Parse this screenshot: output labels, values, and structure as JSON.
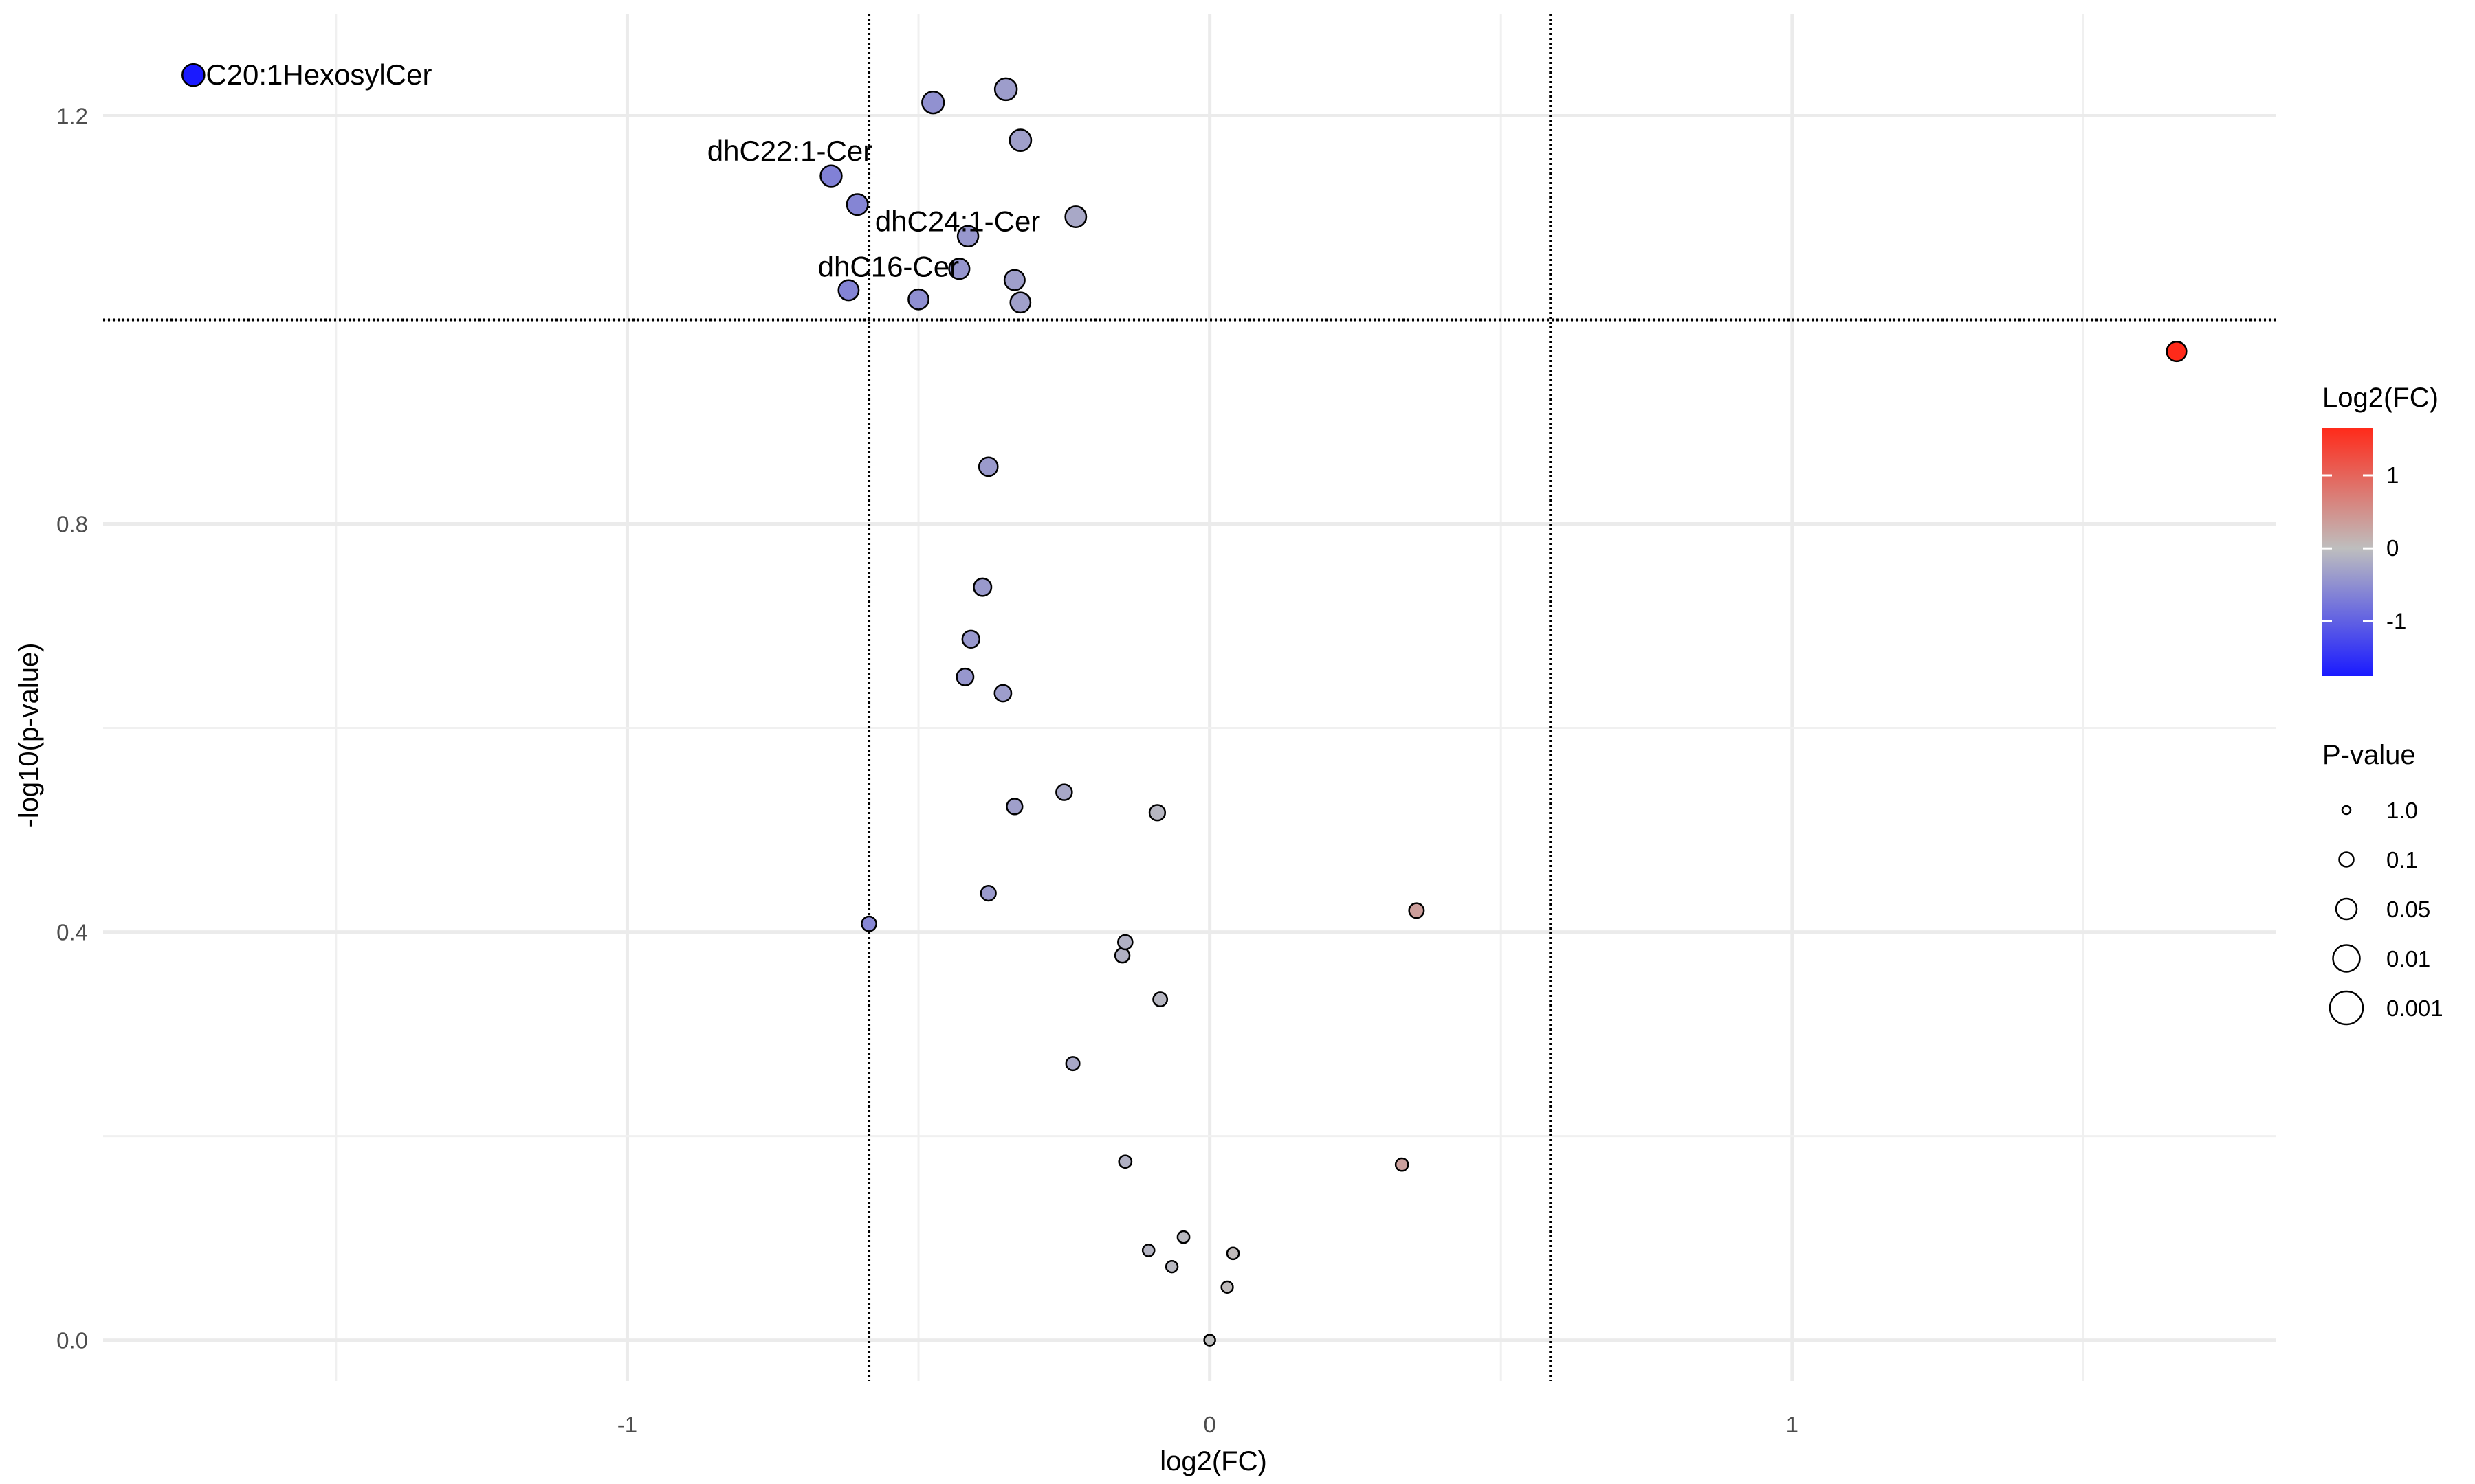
{
  "chart_data": {
    "type": "scatter",
    "xlabel": "log2(FC)",
    "ylabel": "-log10(p-value)",
    "xlim": [
      -1.9,
      1.83
    ],
    "ylim": [
      -0.04,
      1.3
    ],
    "x_ticks": [
      -1,
      0,
      1
    ],
    "x_tick_labels": [
      "-1",
      "0",
      "1"
    ],
    "y_ticks": [
      0.0,
      0.4,
      0.8,
      1.2
    ],
    "y_tick_labels": [
      "0.0",
      "0.4",
      "0.8",
      "1.2"
    ],
    "grid": true,
    "thresholds": {
      "x": [
        -0.585,
        0.585
      ],
      "y": 1.0,
      "style": "dotted"
    },
    "color_legend": {
      "title": "Log2(FC)",
      "ticks": [
        1,
        0,
        -1
      ],
      "tick_labels": [
        "1",
        "0",
        "-1"
      ],
      "range": [
        -1.75,
        1.65
      ],
      "low_color": "#1a1aff",
      "mid_color": "#bebebe",
      "high_color": "#ff2a1a"
    },
    "size_legend": {
      "title": "P-value",
      "entries": [
        "1.0",
        "0.1",
        "0.05",
        "0.01",
        "0.001"
      ]
    },
    "points": [
      {
        "x": -1.745,
        "y": 1.24,
        "p": 0.058,
        "label": "C20:1HexosylCer"
      },
      {
        "x": -0.65,
        "y": 1.141,
        "p": 0.072,
        "label": "dhC22:1-Cer"
      },
      {
        "x": -0.605,
        "y": 1.113,
        "p": 0.077,
        "label": ""
      },
      {
        "x": -0.415,
        "y": 1.082,
        "p": 0.083,
        "label": "dhC24:1-Cer"
      },
      {
        "x": -0.62,
        "y": 1.029,
        "p": 0.094,
        "label": "dhC16-Cer"
      },
      {
        "x": -0.475,
        "y": 1.213,
        "p": 0.061,
        "label": ""
      },
      {
        "x": -0.35,
        "y": 1.226,
        "p": 0.059,
        "label": ""
      },
      {
        "x": -0.325,
        "y": 1.176,
        "p": 0.067,
        "label": ""
      },
      {
        "x": -0.23,
        "y": 1.101,
        "p": 0.079,
        "label": ""
      },
      {
        "x": -0.43,
        "y": 1.05,
        "p": 0.089,
        "label": ""
      },
      {
        "x": -0.335,
        "y": 1.039,
        "p": 0.091,
        "label": ""
      },
      {
        "x": -0.5,
        "y": 1.02,
        "p": 0.095,
        "label": ""
      },
      {
        "x": -0.325,
        "y": 1.017,
        "p": 0.096,
        "label": ""
      },
      {
        "x": 1.66,
        "y": 0.969,
        "p": 0.107,
        "label": ""
      },
      {
        "x": -0.38,
        "y": 0.856,
        "p": 0.139,
        "label": ""
      },
      {
        "x": -0.39,
        "y": 0.738,
        "p": 0.183,
        "label": ""
      },
      {
        "x": -0.41,
        "y": 0.687,
        "p": 0.206,
        "label": ""
      },
      {
        "x": -0.42,
        "y": 0.65,
        "p": 0.224,
        "label": ""
      },
      {
        "x": -0.355,
        "y": 0.634,
        "p": 0.232,
        "label": ""
      },
      {
        "x": -0.25,
        "y": 0.537,
        "p": 0.29,
        "label": ""
      },
      {
        "x": -0.335,
        "y": 0.523,
        "p": 0.3,
        "label": ""
      },
      {
        "x": -0.09,
        "y": 0.517,
        "p": 0.304,
        "label": ""
      },
      {
        "x": -0.38,
        "y": 0.438,
        "p": 0.365,
        "label": ""
      },
      {
        "x": -0.585,
        "y": 0.408,
        "p": 0.391,
        "label": ""
      },
      {
        "x": 0.355,
        "y": 0.421,
        "p": 0.379,
        "label": ""
      },
      {
        "x": -0.145,
        "y": 0.39,
        "p": 0.407,
        "label": ""
      },
      {
        "x": -0.15,
        "y": 0.377,
        "p": 0.42,
        "label": ""
      },
      {
        "x": -0.085,
        "y": 0.334,
        "p": 0.463,
        "label": ""
      },
      {
        "x": -0.235,
        "y": 0.271,
        "p": 0.536,
        "label": ""
      },
      {
        "x": -0.145,
        "y": 0.175,
        "p": 0.668,
        "label": ""
      },
      {
        "x": 0.33,
        "y": 0.172,
        "p": 0.673,
        "label": ""
      },
      {
        "x": -0.045,
        "y": 0.101,
        "p": 0.793,
        "label": ""
      },
      {
        "x": -0.105,
        "y": 0.088,
        "p": 0.817,
        "label": ""
      },
      {
        "x": 0.04,
        "y": 0.085,
        "p": 0.822,
        "label": ""
      },
      {
        "x": -0.065,
        "y": 0.072,
        "p": 0.847,
        "label": ""
      },
      {
        "x": 0.03,
        "y": 0.052,
        "p": 0.887,
        "label": ""
      },
      {
        "x": 0.0,
        "y": 0.0,
        "p": 1.0,
        "label": ""
      }
    ]
  }
}
